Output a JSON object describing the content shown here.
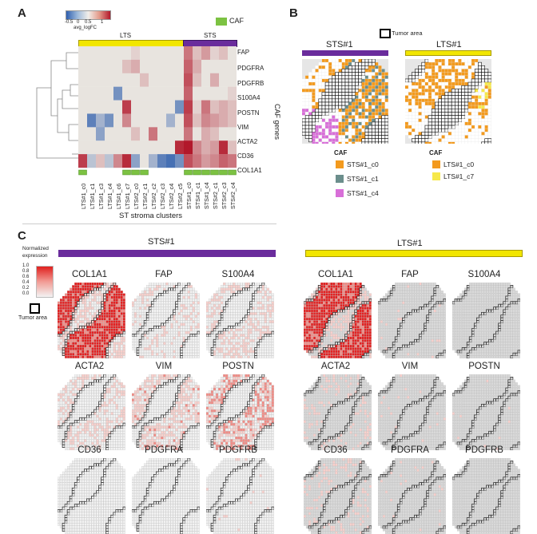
{
  "panels": {
    "a": "A",
    "b": "B",
    "c": "C"
  },
  "colors": {
    "purple": "#6a2c9c",
    "yellow": "#f2e600",
    "caf_green": "#7cc242",
    "orange": "#f39a1e",
    "teal": "#6b8e8c",
    "pink": "#d86fd8",
    "lts_yellow": "#f6e84a",
    "heat_low": "#3b6fb6",
    "heat_mid": "#e8e4df",
    "heat_high": "#b2182b"
  },
  "heatmap": {
    "colorbar_ticks": [
      "-0.5",
      "0",
      "0.5",
      "1"
    ],
    "colorbar_label": "avg_logFC",
    "group_lts": "LTS",
    "group_sts": "STS",
    "caf_legend": "CAF",
    "y_axis_label": "CAF genes",
    "x_axis_label": "ST stroma clusters",
    "genes": [
      "FAP",
      "PDGFRA",
      "PDGFRB",
      "S100A4",
      "POSTN",
      "VIM",
      "ACTA2",
      "CD36",
      "COL1A1"
    ],
    "clusters": [
      "LTS#1_c0",
      "LTS#1_c1",
      "LTS#1_c3",
      "LTS#1_c4",
      "LTS#1_c6",
      "LTS#1_c7",
      "LTS#2_c0",
      "LTS#2_c1",
      "LTS#2_c2",
      "LTS#2_c3",
      "LTS#2_c4",
      "LTS#2_c5",
      "STS#1_c0",
      "STS#1_c1",
      "STS#1_c4",
      "STS#2_c1",
      "STS#2_c3",
      "STS#2_c4"
    ],
    "values": [
      [
        0,
        0,
        0,
        0,
        0,
        0,
        0.1,
        0,
        0,
        0,
        0,
        0,
        0.6,
        0.2,
        0.4,
        0.1,
        0.2,
        0
      ],
      [
        0,
        0,
        0,
        0,
        0,
        0.2,
        0.3,
        0,
        0,
        0,
        0,
        0,
        0.7,
        0.3,
        0,
        0,
        0,
        0
      ],
      [
        0,
        0,
        0,
        0,
        0,
        0,
        0,
        0.2,
        0,
        0,
        0,
        0,
        0.8,
        0.2,
        0,
        0.3,
        0,
        0
      ],
      [
        0,
        0,
        0,
        0,
        -0.5,
        0,
        0,
        0,
        0,
        0,
        0,
        0,
        0.7,
        0,
        0,
        0,
        0,
        0.1
      ],
      [
        0,
        0,
        0,
        0,
        0,
        0.9,
        0,
        0,
        0,
        0,
        0,
        -0.5,
        0.9,
        0.1,
        0.6,
        0.2,
        0.3,
        0.2
      ],
      [
        0,
        -0.6,
        -0.3,
        -0.5,
        0,
        0.5,
        0,
        0,
        0,
        0,
        -0.3,
        0,
        0.8,
        0.2,
        0.5,
        0.4,
        0.3,
        0.2
      ],
      [
        0,
        0,
        -0.4,
        0,
        0,
        0,
        0.2,
        0,
        0.6,
        0,
        0,
        0,
        0.6,
        0,
        0.3,
        0.2,
        0,
        0
      ],
      [
        0,
        0,
        0,
        0,
        0,
        0,
        0,
        0,
        0,
        0,
        0,
        1,
        1.1,
        0.5,
        0.3,
        0.4,
        1,
        0.2
      ],
      [
        0.9,
        -0.2,
        0.2,
        -0.2,
        0.5,
        1,
        -0.4,
        0,
        -0.3,
        -0.6,
        -0.7,
        -0.5,
        0.8,
        0.6,
        0.4,
        0.5,
        0.7,
        0.6
      ]
    ],
    "caf_columns": [
      0,
      5,
      6,
      7,
      12,
      13,
      14,
      15,
      16,
      17
    ]
  },
  "panel_b": {
    "legend_tumor": "Tumor area",
    "sts_title": "STS#1",
    "lts_title": "LTS#1",
    "caf_title_1": "CAF",
    "caf_title_2": "CAF",
    "sts_items": [
      "STS#1_c0",
      "STS#1_c1",
      "STS#1_c4"
    ],
    "lts_items": [
      "LTS#1_c0",
      "LTS#1_c7"
    ]
  },
  "panel_c": {
    "sts_title": "STS#1",
    "lts_title": "LTS#1",
    "legend_title_1": "Normalized",
    "legend_title_2": "expression",
    "legend_ticks": [
      "1.0",
      "0.8",
      "0.6",
      "0.4",
      "0.2",
      "0.0"
    ],
    "tumor_label": "Tumor area",
    "genes": [
      "COL1A1",
      "FAP",
      "S100A4",
      "ACTA2",
      "VIM",
      "POSTN",
      "CD36",
      "PDGFRA",
      "PDGFRB"
    ],
    "sts_expr": [
      0.7,
      0.15,
      0.2,
      0.2,
      0.25,
      0.35,
      0.1,
      0.1,
      0.12
    ],
    "lts_expr": [
      0.75,
      0.12,
      0.08,
      0.15,
      0.12,
      0.12,
      0.15,
      0.12,
      0.1
    ]
  }
}
